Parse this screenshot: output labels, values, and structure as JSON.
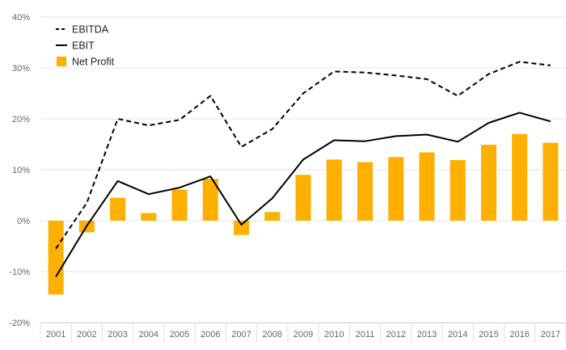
{
  "chart_data": {
    "type": "bar",
    "categories": [
      "2001",
      "2002",
      "2003",
      "2004",
      "2005",
      "2006",
      "2007",
      "2008",
      "2009",
      "2010",
      "2011",
      "2012",
      "2013",
      "2014",
      "2015",
      "2016",
      "2017"
    ],
    "series": [
      {
        "name": "EBITDA",
        "kind": "line",
        "style": "dashed",
        "color": "#000000",
        "values": [
          -5.5,
          3.5,
          20.0,
          18.7,
          19.8,
          24.5,
          14.5,
          18.0,
          25.0,
          29.3,
          29.1,
          28.5,
          27.8,
          24.5,
          28.8,
          31.2,
          30.5
        ]
      },
      {
        "name": "EBIT",
        "kind": "line",
        "style": "solid",
        "color": "#000000",
        "values": [
          -11.0,
          -1.0,
          7.8,
          5.2,
          6.5,
          8.7,
          -0.8,
          4.4,
          12.0,
          15.8,
          15.6,
          16.6,
          16.9,
          15.5,
          19.2,
          21.2,
          19.5
        ]
      },
      {
        "name": "Net Profit",
        "kind": "bar",
        "color": "#FDB000",
        "values": [
          -14.5,
          -2.3,
          4.5,
          1.5,
          6.1,
          8.2,
          -2.8,
          1.7,
          9.0,
          12.0,
          11.5,
          12.5,
          13.4,
          11.9,
          14.9,
          17.0,
          15.3
        ]
      }
    ],
    "yticks": [
      "-20%",
      "-10%",
      "0%",
      "10%",
      "20%",
      "30%",
      "40%"
    ],
    "ylim": [
      -20,
      40
    ],
    "title": "",
    "xlabel": "",
    "ylabel": "",
    "legend_position": "top-left",
    "grid": true
  }
}
